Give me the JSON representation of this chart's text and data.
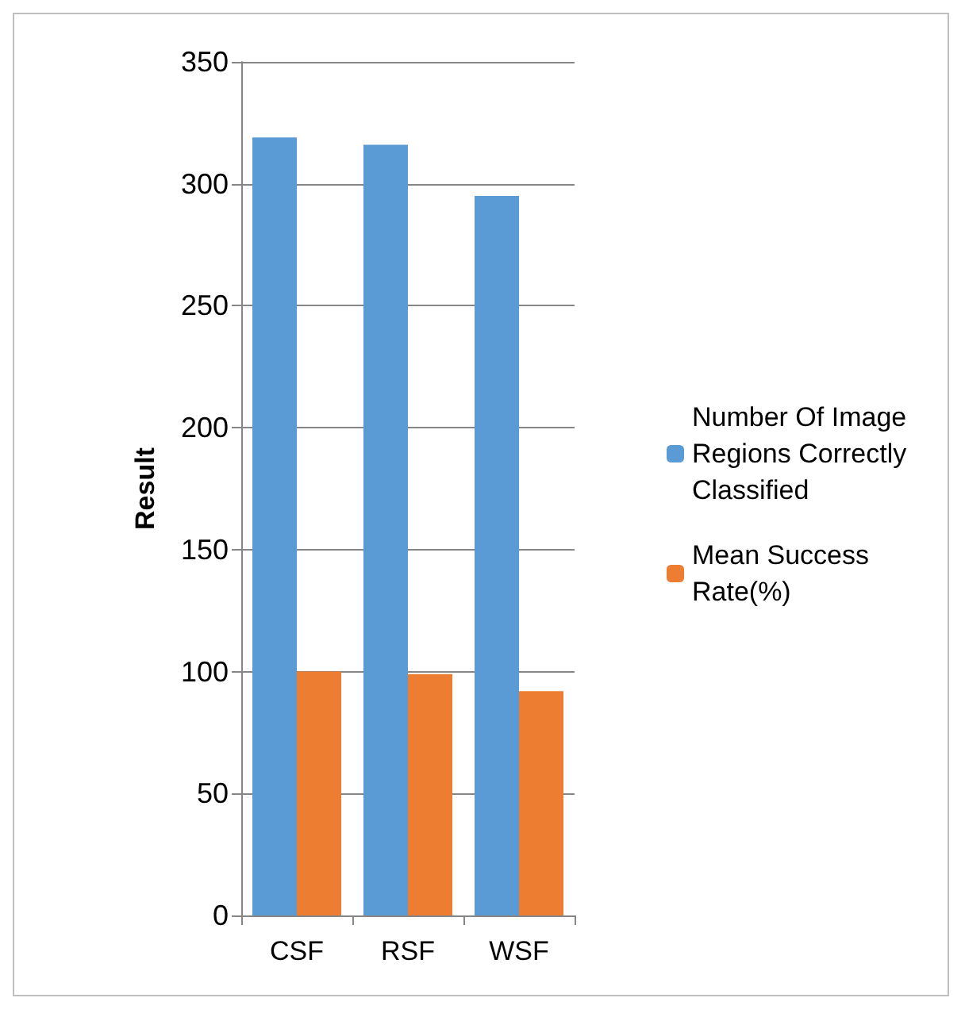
{
  "chart_data": {
    "type": "bar",
    "ylabel": "Result",
    "categories": [
      "CSF",
      "RSF",
      "WSF"
    ],
    "series": [
      {
        "name": "Number Of Image Regions Correctly Classified",
        "color": "#5b9bd5",
        "values": [
          319,
          316,
          295
        ]
      },
      {
        "name": "Mean Success Rate(%)",
        "color": "#ed7d31",
        "values": [
          100,
          99,
          92
        ]
      }
    ],
    "ylim": [
      0,
      350
    ],
    "yticks": [
      0,
      50,
      100,
      150,
      200,
      250,
      300,
      350
    ],
    "grid": "y",
    "legend": "right"
  }
}
